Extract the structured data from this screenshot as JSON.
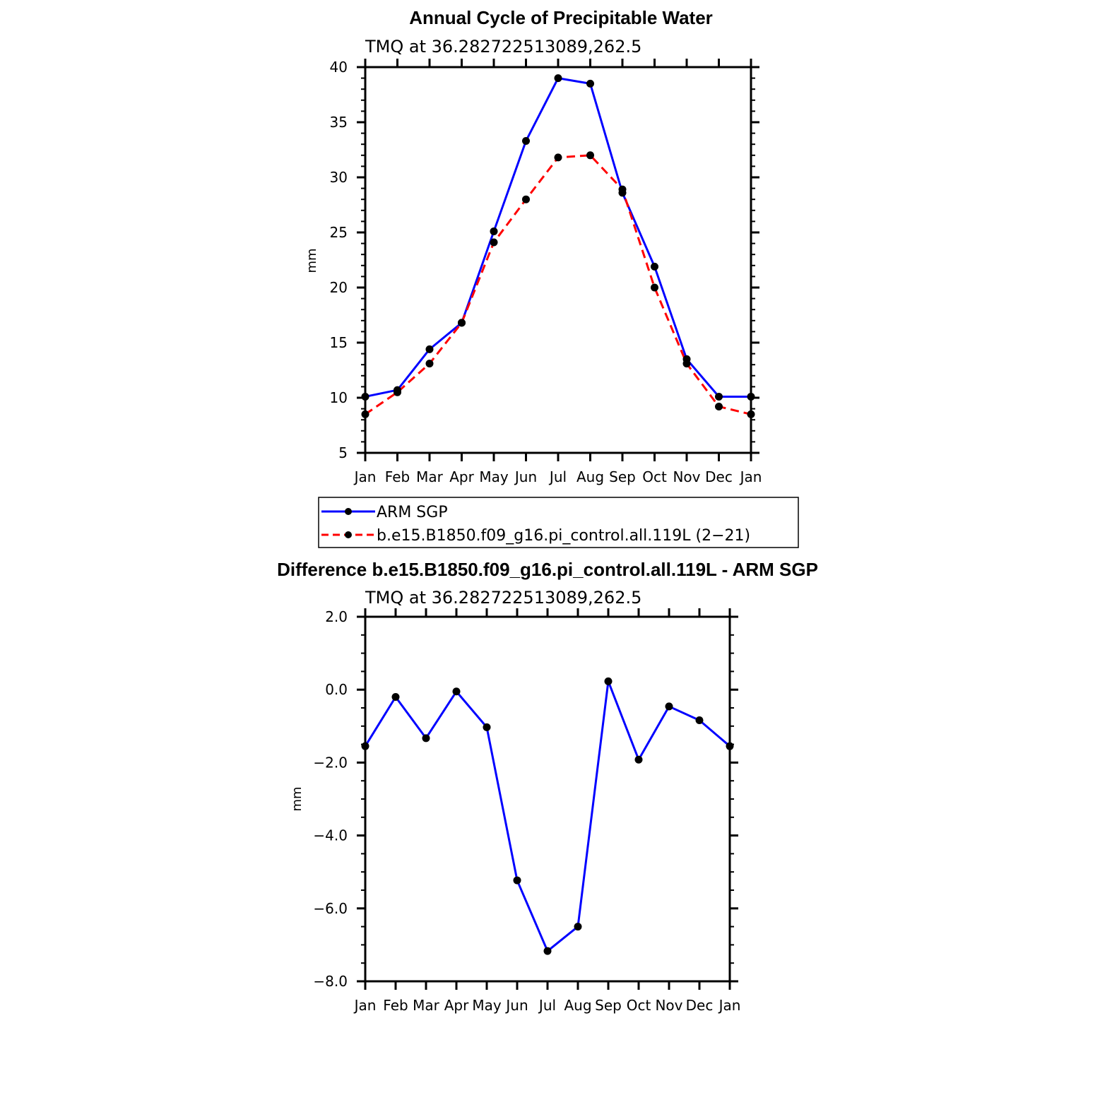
{
  "chart_data": [
    {
      "type": "line",
      "title": "Annual Cycle of Precipitable Water",
      "subtitle": "TMQ at 36.282722513089,262.5",
      "ylabel": "mm",
      "ylim": [
        5,
        40
      ],
      "yticks": [
        5,
        10,
        15,
        20,
        25,
        30,
        35,
        40
      ],
      "ytick_labels": [
        "5",
        "10",
        "15",
        "20",
        "25",
        "30",
        "35",
        "40"
      ],
      "categories": [
        "Jan",
        "Feb",
        "Mar",
        "Apr",
        "May",
        "Jun",
        "Jul",
        "Aug",
        "Sep",
        "Oct",
        "Nov",
        "Dec",
        "Jan"
      ],
      "series": [
        {
          "name": "ARM SGP",
          "color": "#0000ff",
          "dash": "solid",
          "values": [
            10.1,
            10.7,
            14.4,
            16.8,
            25.1,
            33.3,
            39.0,
            38.5,
            28.6,
            21.9,
            13.5,
            10.1,
            10.1
          ]
        },
        {
          "name": "b.e15.B1850.f09_g16.pi_control.all.119L (2−21)",
          "color": "#ff0000",
          "dash": "dashed",
          "values": [
            8.5,
            10.5,
            13.1,
            16.8,
            24.1,
            28.0,
            31.8,
            32.0,
            28.9,
            20.0,
            13.1,
            9.2,
            8.5
          ]
        }
      ],
      "legend_position": "below"
    },
    {
      "type": "line",
      "title": "Difference b.e15.B1850.f09_g16.pi_control.all.119L - ARM SGP",
      "subtitle": "TMQ at 36.282722513089,262.5",
      "ylabel": "mm",
      "ylim": [
        -8,
        2
      ],
      "yticks": [
        -8,
        -6,
        -4,
        -2,
        0,
        2
      ],
      "ytick_labels": [
        "−8.0",
        "−6.0",
        "−4.0",
        "−2.0",
        "0.0",
        "2.0"
      ],
      "categories": [
        "Jan",
        "Feb",
        "Mar",
        "Apr",
        "May",
        "Jun",
        "Jul",
        "Aug",
        "Sep",
        "Oct",
        "Nov",
        "Dec",
        "Jan"
      ],
      "series": [
        {
          "name": "Difference",
          "color": "#0000ff",
          "dash": "solid",
          "values": [
            -1.55,
            -0.2,
            -1.33,
            -0.05,
            -1.03,
            -5.23,
            -7.17,
            -6.5,
            0.23,
            -1.92,
            -0.46,
            -0.84,
            -1.55
          ]
        }
      ]
    }
  ]
}
